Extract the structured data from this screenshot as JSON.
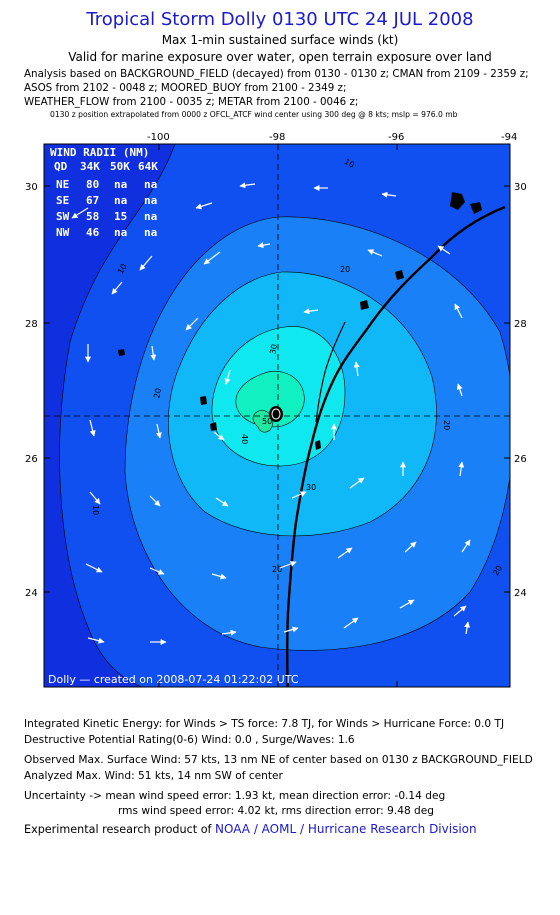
{
  "header": {
    "title": "Tropical Storm Dolly 0130 UTC 24 JUL 2008",
    "subtitle": "Max 1-min sustained surface winds (kt)",
    "subtitle2": "Valid for marine exposure over water, open terrain exposure over land",
    "analysis_lines": [
      "Analysis based on  BACKGROUND_FIELD (decayed) from 0130 - 0130 z;  CMAN from 2109 - 2359 z;",
      "ASOS from 2102 - 0048 z;  MOORED_BUOY from 2100 - 2349 z;",
      "WEATHER_FLOW from 2100 - 0035 z;  METAR from 2100 - 0046 z;"
    ],
    "note": "0130 z position extrapolated from 0000 z OFCL_ATCF wind center using 300 deg @ 8 kts; mslp = 976.0 mb"
  },
  "map": {
    "lon_ticks": [
      "-100",
      "-98",
      "-96",
      "-94"
    ],
    "lat_ticks": [
      "30",
      "28",
      "26",
      "24"
    ],
    "contour_labels": [
      "10",
      "10",
      "10",
      "20",
      "20",
      "20",
      "20",
      "20",
      "30",
      "30",
      "40",
      "50"
    ],
    "credit": "Dolly — created on 2008-07-24 01:22:02 UTC",
    "wind_radii": {
      "title": "WIND RADII (NM)",
      "header": [
        "QD",
        "34K",
        "50K",
        "64K"
      ],
      "rows": [
        [
          "NE",
          "80",
          "na",
          "na"
        ],
        [
          "SE",
          "67",
          "na",
          "na"
        ],
        [
          "SW",
          "58",
          "15",
          "na"
        ],
        [
          "NW",
          "46",
          "na",
          "na"
        ]
      ]
    }
  },
  "footer": {
    "ike": "Integrated Kinetic Energy:  for Winds > TS force: 7.8 TJ,  for Winds > Hurricane Force: 0.0 TJ",
    "dpr": "Destructive Potential Rating(0-6)   Wind: 0.0 , Surge/Waves: 1.6",
    "observed": "Observed Max. Surface Wind: 57 kts, 13 nm NE of center based on 0130 z BACKGROUND_FIELD",
    "analyzed": "Analyzed Max. Wind: 51 kts, 14 nm SW of center",
    "uncert1": "Uncertainty -> mean wind speed error: 1.93 kt,   mean direction error:  -0.14 deg",
    "uncert2": "rms wind speed error: 4.02 kt,   rms direction error: 9.48 deg",
    "credit_prefix": "Experimental research product of ",
    "credit_org": "NOAA / AOML / Hurricane Research Division"
  },
  "colors": {
    "outer": "#1030e0",
    "c10": "#1050f0",
    "c20": "#1a80f8",
    "c30": "#10b8f8",
    "c40": "#10e8f0",
    "c50": "#10f0c0",
    "c50b": "#20e8a0"
  }
}
